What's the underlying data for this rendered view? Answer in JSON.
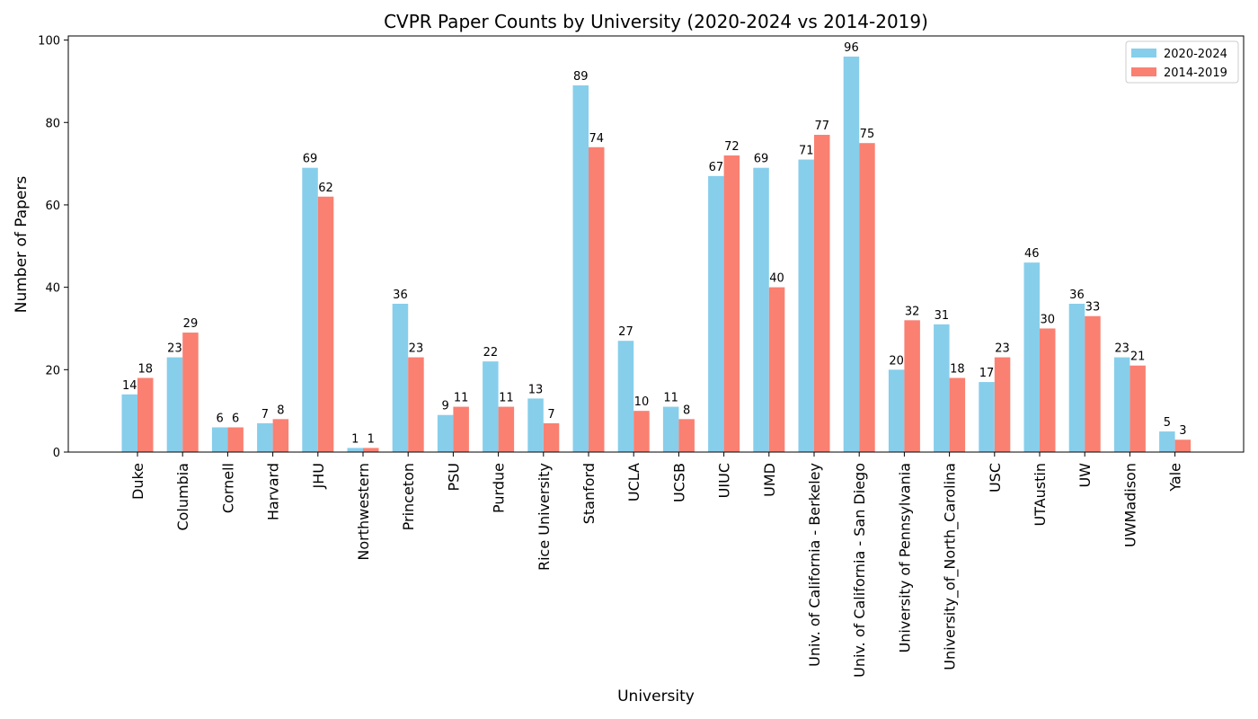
{
  "colors": {
    "series_2020_2024": "#87CEEB",
    "series_2014_2019": "#FA8072",
    "axis": "#000000",
    "legend_border": "#cccccc"
  },
  "chart_data": {
    "type": "bar",
    "title": "CVPR Paper Counts by University (2020-2024 vs 2014-2019)",
    "xlabel": "University",
    "ylabel": "Number of Papers",
    "ylim": [
      0,
      101
    ],
    "yticks": [
      0,
      20,
      40,
      60,
      80,
      100
    ],
    "grid": false,
    "legend_position": "top-right",
    "categories": [
      "Duke",
      "Columbia",
      "Cornell",
      "Harvard",
      "JHU",
      "Northwestern",
      "Princeton",
      "PSU",
      "Purdue",
      "Rice University",
      "Stanford",
      "UCLA",
      "UCSB",
      "UIUC",
      "UMD",
      "Univ. of California - Berkeley",
      "Univ. of California - San Diego",
      "University of Pennsylvania",
      "University_of_North_Carolina",
      "USC",
      "UTAustin",
      "UW",
      "UWMadison",
      "Yale"
    ],
    "series": [
      {
        "name": "2020-2024",
        "color": "#87CEEB",
        "values": [
          14,
          23,
          6,
          7,
          69,
          1,
          36,
          9,
          22,
          13,
          89,
          27,
          11,
          67,
          69,
          71,
          96,
          20,
          31,
          17,
          46,
          36,
          23,
          5
        ]
      },
      {
        "name": "2014-2019",
        "color": "#FA8072",
        "values": [
          18,
          29,
          6,
          8,
          62,
          1,
          23,
          11,
          11,
          7,
          74,
          10,
          8,
          72,
          40,
          77,
          75,
          32,
          18,
          23,
          30,
          33,
          21,
          3
        ]
      }
    ]
  }
}
